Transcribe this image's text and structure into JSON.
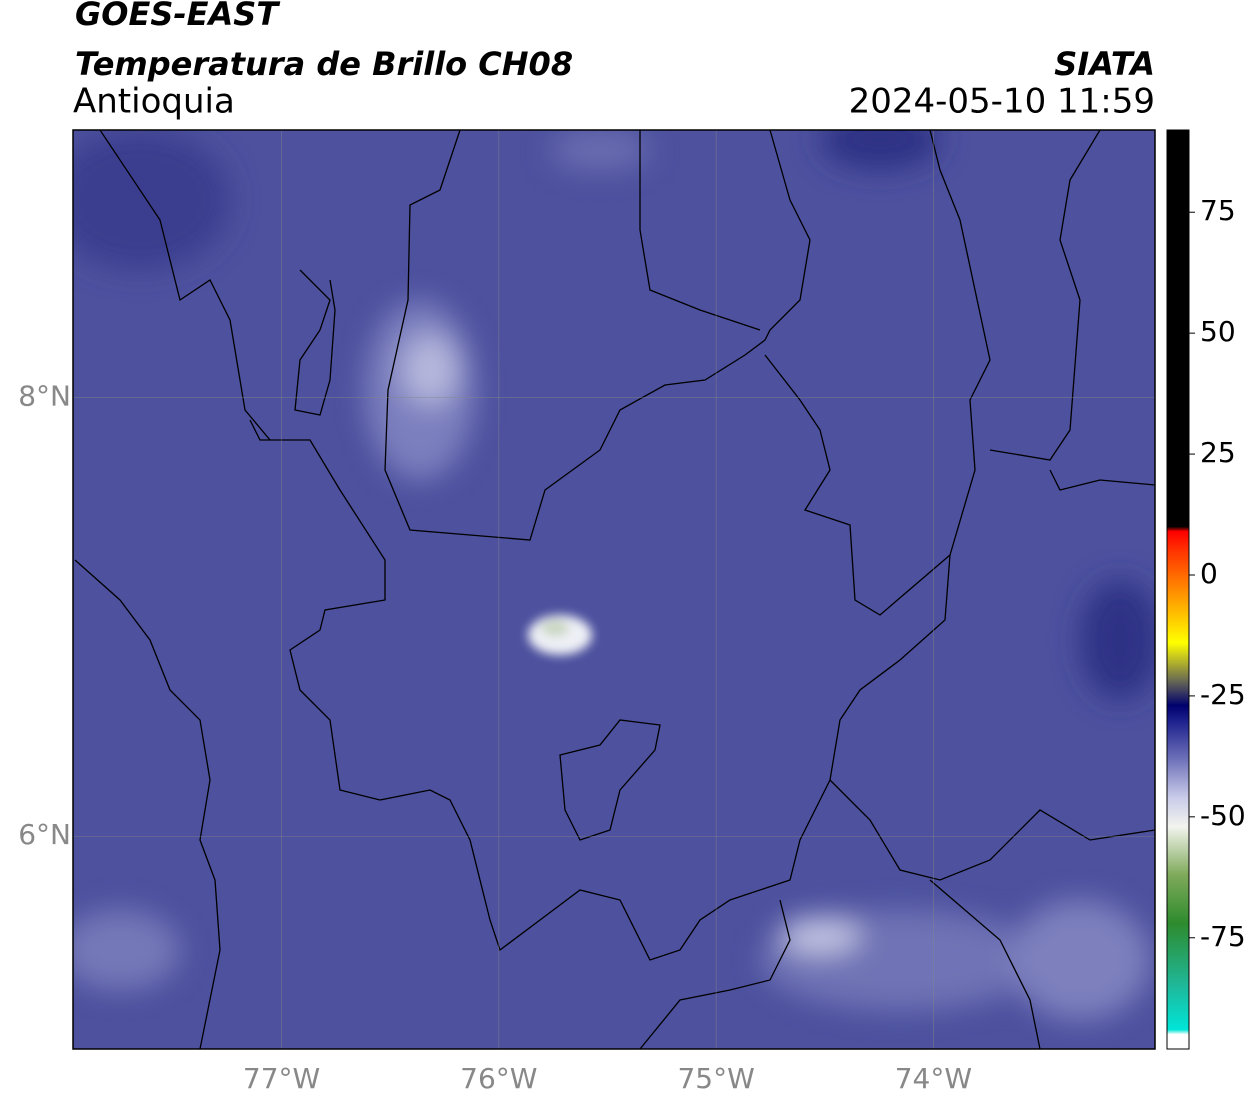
{
  "header": {
    "title": "GOES-EAST",
    "subtitle": "Temperatura de Brillo CH08",
    "region": "Antioquia",
    "source": "SIATA",
    "timestamp": "2024-05-10 11:59"
  },
  "map": {
    "xlim": [
      -77.96,
      -72.98
    ],
    "ylim": [
      5.03,
      9.22
    ],
    "xticks": [
      {
        "value": -77,
        "label": "77°W"
      },
      {
        "value": -76,
        "label": "76°W"
      },
      {
        "value": -75,
        "label": "75°W"
      },
      {
        "value": -74,
        "label": "74°W"
      }
    ],
    "yticks": [
      {
        "value": 8,
        "label": "8°N"
      },
      {
        "value": 6,
        "label": "6°N"
      }
    ],
    "grid": true,
    "background": "#4d519e"
  },
  "colorbar": {
    "lim": [
      -98,
      92
    ],
    "ticks": [
      75,
      50,
      25,
      0,
      -25,
      -50,
      -75
    ],
    "stops": [
      [
        -98,
        "#ffffff"
      ],
      [
        -95,
        "#ffffff"
      ],
      [
        -94,
        "#00e5d8"
      ],
      [
        -85,
        "#1fb89a"
      ],
      [
        -72,
        "#2e8b2e"
      ],
      [
        -62,
        "#7faa5a"
      ],
      [
        -52,
        "#f2f4ee"
      ],
      [
        -46,
        "#c9cbe9"
      ],
      [
        -38,
        "#6d70b8"
      ],
      [
        -30,
        "#1b1f8c"
      ],
      [
        -27,
        "#00006e"
      ],
      [
        -22,
        "#666655"
      ],
      [
        -14,
        "#ffff00"
      ],
      [
        -6,
        "#ffaa00"
      ],
      [
        5,
        "#ff3300"
      ],
      [
        9,
        "#ff0000"
      ],
      [
        10,
        "#000000"
      ],
      [
        92,
        "#000000"
      ]
    ]
  }
}
